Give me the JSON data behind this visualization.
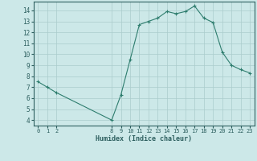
{
  "x": [
    0,
    1,
    2,
    8,
    9,
    10,
    11,
    12,
    13,
    14,
    15,
    16,
    17,
    18,
    19,
    20,
    21,
    22,
    23
  ],
  "y": [
    7.5,
    7.0,
    6.5,
    4.0,
    6.3,
    9.5,
    12.7,
    13.0,
    13.3,
    13.9,
    13.7,
    13.9,
    14.4,
    13.3,
    12.9,
    10.2,
    9.0,
    8.6,
    8.3
  ],
  "xlabel": "Humidex (Indice chaleur)",
  "ylim": [
    3.5,
    14.8
  ],
  "xlim": [
    -0.5,
    23.5
  ],
  "yticks": [
    4,
    5,
    6,
    7,
    8,
    9,
    10,
    11,
    12,
    13,
    14
  ],
  "xticks": [
    0,
    1,
    2,
    8,
    9,
    10,
    11,
    12,
    13,
    14,
    15,
    16,
    17,
    18,
    19,
    20,
    21,
    22,
    23
  ],
  "line_color": "#2e7d6e",
  "marker_color": "#2e7d6e",
  "bg_color": "#cce8e8",
  "grid_color": "#aacccc",
  "font_color": "#2e6060"
}
